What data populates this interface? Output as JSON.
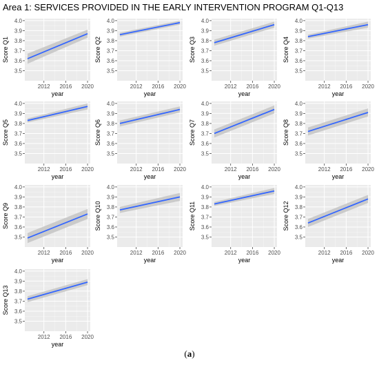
{
  "title": "Area 1: SERVICES PROVIDED IN THE EARLY INTERVENTION PROGRAM Q1-Q13",
  "caption": {
    "open": "(",
    "letter": "a",
    "close": ")"
  },
  "colors": {
    "panel_bg": "#ebebeb",
    "grid_major": "#ffffff",
    "band": "#c4c4c4",
    "line": "#3366ff"
  },
  "chart_data": [
    {
      "type": "line",
      "title": "",
      "xlabel": "year",
      "ylabel": "Score Q1",
      "xlim": [
        2008.5,
        2020.5
      ],
      "ylim": [
        3.4,
        4.02
      ],
      "xticks": [
        2012,
        2016,
        2020
      ],
      "yticks": [
        3.5,
        3.6,
        3.7,
        3.8,
        3.9,
        4.0
      ],
      "series": [
        {
          "x": [
            2009,
            2020
          ],
          "y": [
            3.62,
            3.87
          ],
          "ci_low": [
            3.57,
            3.83
          ],
          "ci_high": [
            3.67,
            3.91
          ]
        }
      ]
    },
    {
      "type": "line",
      "title": "",
      "xlabel": "year",
      "ylabel": "Score Q2",
      "xlim": [
        2008.5,
        2020.5
      ],
      "ylim": [
        3.4,
        4.02
      ],
      "xticks": [
        2012,
        2016,
        2020
      ],
      "yticks": [
        3.5,
        3.6,
        3.7,
        3.8,
        3.9,
        4.0
      ],
      "series": [
        {
          "x": [
            2009,
            2020
          ],
          "y": [
            3.86,
            3.98
          ],
          "ci_low": [
            3.84,
            3.96
          ],
          "ci_high": [
            3.88,
            4.0
          ]
        }
      ]
    },
    {
      "type": "line",
      "title": "",
      "xlabel": "year",
      "ylabel": "Score Q3",
      "xlim": [
        2008.5,
        2020.5
      ],
      "ylim": [
        3.4,
        4.02
      ],
      "xticks": [
        2012,
        2016,
        2020
      ],
      "yticks": [
        3.5,
        3.6,
        3.7,
        3.8,
        3.9,
        4.0
      ],
      "series": [
        {
          "x": [
            2009,
            2020
          ],
          "y": [
            3.78,
            3.96
          ],
          "ci_low": [
            3.75,
            3.93
          ],
          "ci_high": [
            3.81,
            3.99
          ]
        }
      ]
    },
    {
      "type": "line",
      "title": "",
      "xlabel": "year",
      "ylabel": "Score Q4",
      "xlim": [
        2008.5,
        2020.5
      ],
      "ylim": [
        3.4,
        4.02
      ],
      "xticks": [
        2012,
        2016,
        2020
      ],
      "yticks": [
        3.5,
        3.6,
        3.7,
        3.8,
        3.9,
        4.0
      ],
      "series": [
        {
          "x": [
            2009,
            2020
          ],
          "y": [
            3.84,
            3.96
          ],
          "ci_low": [
            3.82,
            3.93
          ],
          "ci_high": [
            3.86,
            3.99
          ]
        }
      ]
    },
    {
      "type": "line",
      "title": "",
      "xlabel": "year",
      "ylabel": "Score Q5",
      "xlim": [
        2008.5,
        2020.5
      ],
      "ylim": [
        3.4,
        4.02
      ],
      "xticks": [
        2012,
        2016,
        2020
      ],
      "yticks": [
        3.5,
        3.6,
        3.7,
        3.8,
        3.9,
        4.0
      ],
      "series": [
        {
          "x": [
            2009,
            2020
          ],
          "y": [
            3.83,
            3.97
          ],
          "ci_low": [
            3.81,
            3.94
          ],
          "ci_high": [
            3.85,
            4.0
          ]
        }
      ]
    },
    {
      "type": "line",
      "title": "",
      "xlabel": "year",
      "ylabel": "Score Q6",
      "xlim": [
        2008.5,
        2020.5
      ],
      "ylim": [
        3.4,
        4.02
      ],
      "xticks": [
        2012,
        2016,
        2020
      ],
      "yticks": [
        3.5,
        3.6,
        3.7,
        3.8,
        3.9,
        4.0
      ],
      "series": [
        {
          "x": [
            2009,
            2020
          ],
          "y": [
            3.8,
            3.94
          ],
          "ci_low": [
            3.77,
            3.91
          ],
          "ci_high": [
            3.83,
            3.97
          ]
        }
      ]
    },
    {
      "type": "line",
      "title": "",
      "xlabel": "year",
      "ylabel": "Score Q7",
      "xlim": [
        2008.5,
        2020.5
      ],
      "ylim": [
        3.4,
        4.02
      ],
      "xticks": [
        2012,
        2016,
        2020
      ],
      "yticks": [
        3.5,
        3.6,
        3.7,
        3.8,
        3.9,
        4.0
      ],
      "series": [
        {
          "x": [
            2009,
            2020
          ],
          "y": [
            3.7,
            3.94
          ],
          "ci_low": [
            3.66,
            3.9
          ],
          "ci_high": [
            3.74,
            3.98
          ]
        }
      ]
    },
    {
      "type": "line",
      "title": "",
      "xlabel": "year",
      "ylabel": "Score Q8",
      "xlim": [
        2008.5,
        2020.5
      ],
      "ylim": [
        3.4,
        4.02
      ],
      "xticks": [
        2012,
        2016,
        2020
      ],
      "yticks": [
        3.5,
        3.6,
        3.7,
        3.8,
        3.9,
        4.0
      ],
      "series": [
        {
          "x": [
            2009,
            2020
          ],
          "y": [
            3.72,
            3.91
          ],
          "ci_low": [
            3.68,
            3.87
          ],
          "ci_high": [
            3.76,
            3.95
          ]
        }
      ]
    },
    {
      "type": "line",
      "title": "",
      "xlabel": "year",
      "ylabel": "Score Q9",
      "xlim": [
        2008.5,
        2020.5
      ],
      "ylim": [
        3.4,
        4.02
      ],
      "xticks": [
        2012,
        2016,
        2020
      ],
      "yticks": [
        3.5,
        3.6,
        3.7,
        3.8,
        3.9,
        4.0
      ],
      "series": [
        {
          "x": [
            2009,
            2020
          ],
          "y": [
            3.49,
            3.73
          ],
          "ci_low": [
            3.44,
            3.68
          ],
          "ci_high": [
            3.54,
            3.78
          ]
        }
      ]
    },
    {
      "type": "line",
      "title": "",
      "xlabel": "year",
      "ylabel": "Score Q10",
      "xlim": [
        2008.5,
        2020.5
      ],
      "ylim": [
        3.4,
        4.02
      ],
      "xticks": [
        2012,
        2016,
        2020
      ],
      "yticks": [
        3.5,
        3.6,
        3.7,
        3.8,
        3.9,
        4.0
      ],
      "series": [
        {
          "x": [
            2009,
            2020
          ],
          "y": [
            3.77,
            3.9
          ],
          "ci_low": [
            3.74,
            3.86
          ],
          "ci_high": [
            3.8,
            3.94
          ]
        }
      ]
    },
    {
      "type": "line",
      "title": "",
      "xlabel": "year",
      "ylabel": "Score Q11",
      "xlim": [
        2008.5,
        2020.5
      ],
      "ylim": [
        3.4,
        4.02
      ],
      "xticks": [
        2012,
        2016,
        2020
      ],
      "yticks": [
        3.5,
        3.6,
        3.7,
        3.8,
        3.9,
        4.0
      ],
      "series": [
        {
          "x": [
            2009,
            2020
          ],
          "y": [
            3.83,
            3.96
          ],
          "ci_low": [
            3.81,
            3.93
          ],
          "ci_high": [
            3.85,
            3.99
          ]
        }
      ]
    },
    {
      "type": "line",
      "title": "",
      "xlabel": "year",
      "ylabel": "Score Q12",
      "xlim": [
        2008.5,
        2020.5
      ],
      "ylim": [
        3.4,
        4.02
      ],
      "xticks": [
        2012,
        2016,
        2020
      ],
      "yticks": [
        3.5,
        3.6,
        3.7,
        3.8,
        3.9,
        4.0
      ],
      "series": [
        {
          "x": [
            2009,
            2020
          ],
          "y": [
            3.64,
            3.88
          ],
          "ci_low": [
            3.6,
            3.84
          ],
          "ci_high": [
            3.68,
            3.92
          ]
        }
      ]
    },
    {
      "type": "line",
      "title": "",
      "xlabel": "year",
      "ylabel": "Score Q13",
      "xlim": [
        2008.5,
        2020.5
      ],
      "ylim": [
        3.4,
        4.02
      ],
      "xticks": [
        2012,
        2016,
        2020
      ],
      "yticks": [
        3.5,
        3.6,
        3.7,
        3.8,
        3.9,
        4.0
      ],
      "series": [
        {
          "x": [
            2009,
            2020
          ],
          "y": [
            3.72,
            3.89
          ],
          "ci_low": [
            3.69,
            3.86
          ],
          "ci_high": [
            3.75,
            3.92
          ]
        }
      ]
    }
  ]
}
